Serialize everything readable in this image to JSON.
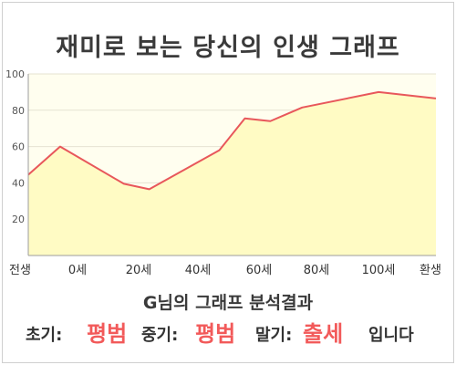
{
  "title": "재미로 보는 당신의 인생 그래프",
  "colors": {
    "line": "#e8575b",
    "fill": "#fffbc4",
    "fill_top": "#fffbc4",
    "plot_bg": "#fffeef",
    "accent": "#f25a5a",
    "text": "#333333"
  },
  "chart_data": {
    "type": "area",
    "x_labels": [
      "전생",
      "0세",
      "20세",
      "40세",
      "60세",
      "80세",
      "100세",
      "환생"
    ],
    "points": [
      {
        "x": -10,
        "y": 44.5
      },
      {
        "x": 0,
        "y": 60
      },
      {
        "x": 20,
        "y": 39.5
      },
      {
        "x": 28,
        "y": 36.5
      },
      {
        "x": 50,
        "y": 58
      },
      {
        "x": 58,
        "y": 75.5
      },
      {
        "x": 66,
        "y": 74
      },
      {
        "x": 76,
        "y": 81.5
      },
      {
        "x": 100,
        "y": 90
      },
      {
        "x": 118,
        "y": 86.5
      }
    ],
    "y_ticks": [
      20,
      40,
      60,
      80,
      100
    ],
    "ylim": [
      0,
      100
    ],
    "grid": true
  },
  "result": {
    "title": "G님의 그래프 분석결과",
    "early_label": "초기:",
    "early_value": "평범",
    "middle_label": "중기:",
    "middle_value": "평범",
    "late_label": "말기:",
    "late_value": "출세",
    "suffix": "입니다"
  }
}
